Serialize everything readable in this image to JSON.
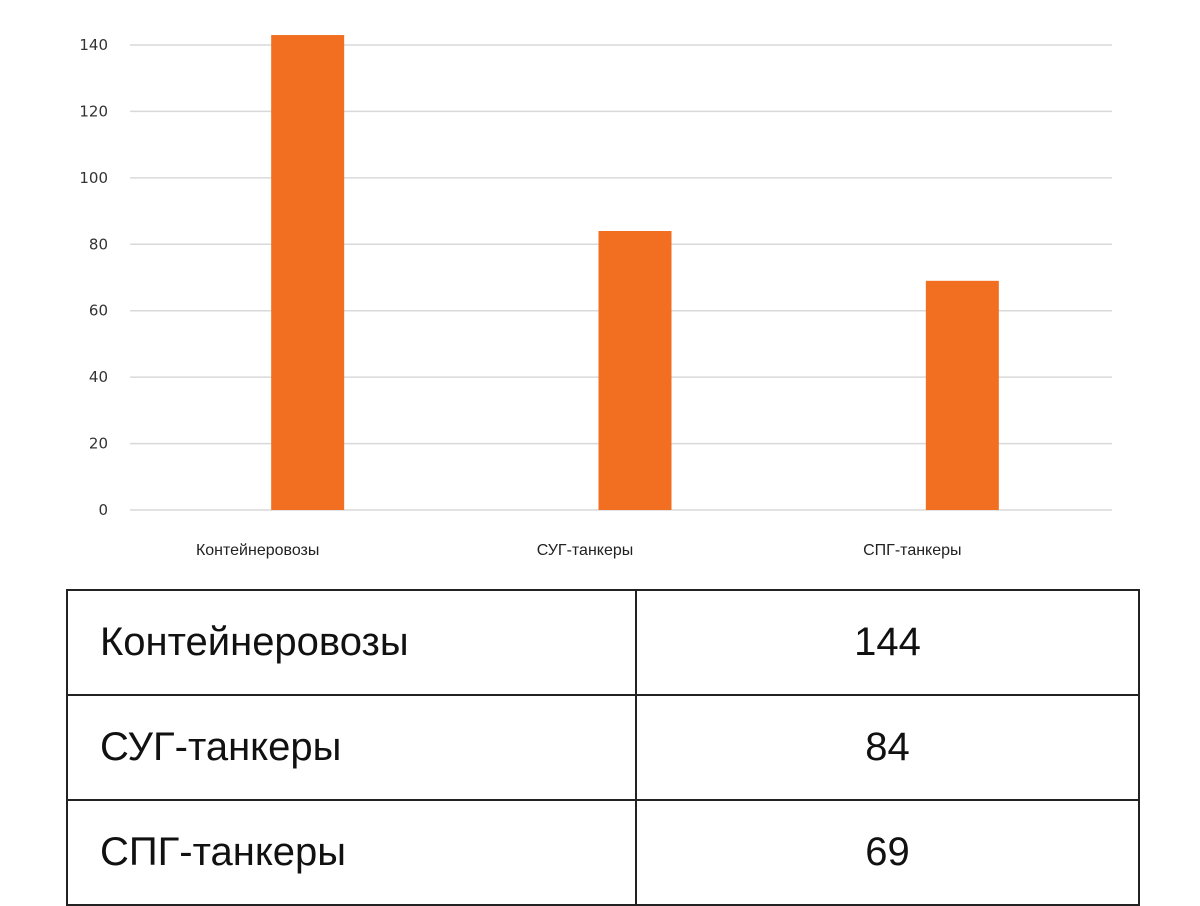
{
  "chart_data": {
    "type": "bar",
    "categories": [
      "Контейнеровозы",
      "СУГ-танкеры",
      "СПГ-танкеры"
    ],
    "values": [
      144,
      84,
      69
    ],
    "ylim": [
      0,
      140
    ],
    "yticks": [
      0,
      20,
      40,
      60,
      80,
      100,
      120,
      140
    ],
    "grid": true,
    "bar_color": "#f26f21"
  },
  "table": {
    "rows": [
      {
        "label": "Контейнеровозы",
        "value": "144"
      },
      {
        "label": "СУГ-танкеры",
        "value": "84"
      },
      {
        "label": "СПГ-танкеры",
        "value": "69"
      }
    ]
  }
}
